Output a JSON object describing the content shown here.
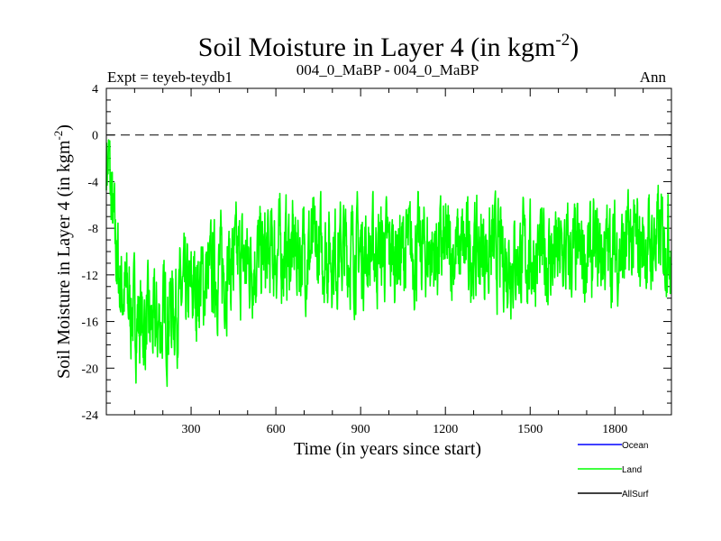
{
  "chart_data": {
    "type": "line",
    "title": "Soil Moisture in Layer 4 (in kgm",
    "title_sup": "-2",
    "title_end": ")",
    "subtitle_left": "Expt = teyeb-teydb1",
    "subtitle_center": "004_0_MaBP - 004_0_MaBP",
    "subtitle_right": "Ann",
    "xlabel": "Time (in years since start)",
    "ylabel": "Soil Moisture in Layer 4 (in kgm",
    "ylabel_sup": "-2",
    "ylabel_end": ")",
    "xlim": [
      0,
      2000
    ],
    "ylim": [
      -24,
      4
    ],
    "xticks": [
      300,
      600,
      900,
      1200,
      1500,
      1800
    ],
    "yticks": [
      4,
      0,
      -4,
      -8,
      -12,
      -16,
      -20,
      -24
    ],
    "reference_line": 0,
    "legend": [
      {
        "name": "Ocean",
        "color": "#0000ff"
      },
      {
        "name": "Land",
        "color": "#00ff00"
      },
      {
        "name": "AllSurf",
        "color": "#000000"
      }
    ],
    "series": [
      {
        "name": "Land",
        "color": "#00ff00",
        "x": [
          0,
          10,
          25,
          50,
          75,
          100,
          125,
          150,
          175,
          200,
          225,
          250,
          275,
          300,
          325,
          350,
          375,
          400,
          425,
          450,
          475,
          500,
          525,
          550,
          575,
          600,
          625,
          650,
          675,
          700,
          725,
          750,
          775,
          800,
          825,
          850,
          875,
          900,
          925,
          950,
          975,
          1000,
          1025,
          1050,
          1075,
          1100,
          1125,
          1150,
          1175,
          1200,
          1225,
          1250,
          1275,
          1300,
          1325,
          1350,
          1375,
          1400,
          1425,
          1450,
          1475,
          1500,
          1525,
          1550,
          1575,
          1600,
          1625,
          1650,
          1675,
          1700,
          1725,
          1750,
          1775,
          1800,
          1825,
          1850,
          1875,
          1900,
          1925,
          1950,
          1975,
          2000
        ],
        "values": [
          -1.5,
          -3,
          -8,
          -13,
          -14,
          -15.5,
          -16,
          -16.5,
          -16.5,
          -16,
          -15,
          -14.5,
          -14,
          -13.5,
          -13,
          -12.5,
          -12,
          -11.5,
          -11.5,
          -11,
          -11,
          -11,
          -10.5,
          -10.5,
          -10.5,
          -10,
          -10,
          -10,
          -10,
          -10,
          -10,
          -10,
          -10,
          -10,
          -10,
          -10,
          -10,
          -10,
          -10,
          -10,
          -10,
          -10,
          -10,
          -10,
          -10,
          -10,
          -10,
          -10,
          -10,
          -10,
          -10,
          -10,
          -10,
          -10,
          -10,
          -10,
          -10,
          -10.5,
          -10.5,
          -10.5,
          -10.5,
          -10.5,
          -10.5,
          -10.5,
          -10.5,
          -10.5,
          -10.5,
          -10.5,
          -10.5,
          -10.5,
          -10.5,
          -10,
          -10,
          -10,
          -10,
          -9.5,
          -9.5,
          -9.5,
          -9.5,
          -9,
          -9,
          -8.5
        ]
      }
    ]
  }
}
